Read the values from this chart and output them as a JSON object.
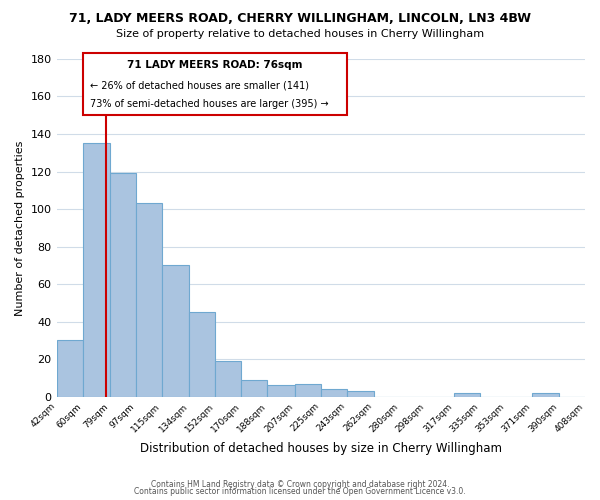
{
  "title_line1": "71, LADY MEERS ROAD, CHERRY WILLINGHAM, LINCOLN, LN3 4BW",
  "title_line2": "Size of property relative to detached houses in Cherry Willingham",
  "xlabel": "Distribution of detached houses by size in Cherry Willingham",
  "ylabel": "Number of detached properties",
  "bar_edges": [
    42,
    60,
    79,
    97,
    115,
    134,
    152,
    170,
    188,
    207,
    225,
    243,
    262,
    280,
    298,
    317,
    335,
    353,
    371,
    390,
    408
  ],
  "bar_heights": [
    30,
    135,
    119,
    103,
    70,
    45,
    19,
    9,
    6,
    7,
    4,
    3,
    0,
    0,
    0,
    2,
    0,
    0,
    2,
    0
  ],
  "bar_color": "#aac4e0",
  "bar_edgecolor": "#6fa8d0",
  "property_line_x": 76,
  "property_line_color": "#cc0000",
  "ylim": [
    0,
    180
  ],
  "tick_labels": [
    "42sqm",
    "60sqm",
    "79sqm",
    "97sqm",
    "115sqm",
    "134sqm",
    "152sqm",
    "170sqm",
    "188sqm",
    "207sqm",
    "225sqm",
    "243sqm",
    "262sqm",
    "280sqm",
    "298sqm",
    "317sqm",
    "335sqm",
    "353sqm",
    "371sqm",
    "390sqm",
    "408sqm"
  ],
  "annotation_title": "71 LADY MEERS ROAD: 76sqm",
  "annotation_line1": "← 26% of detached houses are smaller (141)",
  "annotation_line2": "73% of semi-detached houses are larger (395) →",
  "footer_line1": "Contains HM Land Registry data © Crown copyright and database right 2024.",
  "footer_line2": "Contains public sector information licensed under the Open Government Licence v3.0.",
  "background_color": "#ffffff",
  "grid_color": "#d0dce8"
}
